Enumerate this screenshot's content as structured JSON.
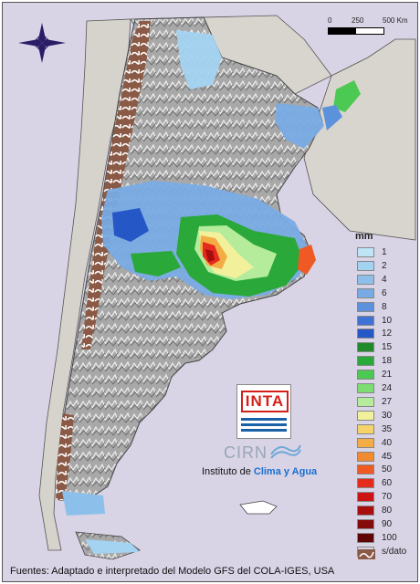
{
  "map": {
    "unit_label": "mm",
    "scale_labels": [
      "0",
      "250",
      "500 Km"
    ],
    "legend": [
      {
        "label": "1",
        "color": "#bfe4f5"
      },
      {
        "label": "2",
        "color": "#a3d3f0"
      },
      {
        "label": "4",
        "color": "#8cc0ea"
      },
      {
        "label": "6",
        "color": "#78abe3"
      },
      {
        "label": "8",
        "color": "#5c92dc"
      },
      {
        "label": "10",
        "color": "#3f72d4"
      },
      {
        "label": "12",
        "color": "#2557c7"
      },
      {
        "label": "15",
        "color": "#1e8a2a"
      },
      {
        "label": "18",
        "color": "#2aa83a"
      },
      {
        "label": "21",
        "color": "#4cc953"
      },
      {
        "label": "24",
        "color": "#7ddc72"
      },
      {
        "label": "27",
        "color": "#b4ec9c"
      },
      {
        "label": "30",
        "color": "#f3f09c"
      },
      {
        "label": "35",
        "color": "#f5d36a"
      },
      {
        "label": "40",
        "color": "#f4ad45"
      },
      {
        "label": "45",
        "color": "#f28a2f"
      },
      {
        "label": "50",
        "color": "#ef5a24"
      },
      {
        "label": "60",
        "color": "#e52a1e"
      },
      {
        "label": "70",
        "color": "#cc1414"
      },
      {
        "label": "80",
        "color": "#a80e0e"
      },
      {
        "label": "90",
        "color": "#850a0a"
      },
      {
        "label": "100",
        "color": "#5e0606"
      },
      {
        "label": "s/dato",
        "color": "#8a5a46"
      }
    ]
  },
  "logos": {
    "inta": "INTA",
    "cirn": "CIRN",
    "instituto_prefix": "Instituto de ",
    "instituto_highlight": "Clima y Agua"
  },
  "footer": "Fuentes: Adaptado e interpretado del Modelo GFS del COLA-IGES, USA"
}
